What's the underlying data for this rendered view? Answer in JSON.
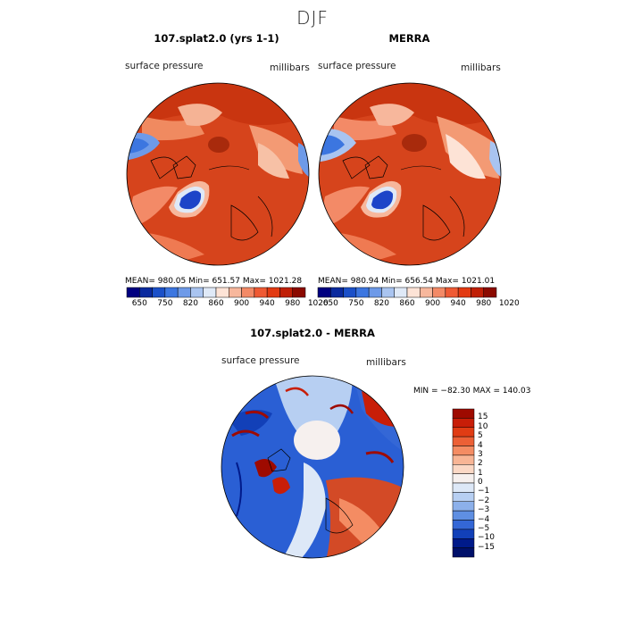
{
  "season": "DJF",
  "panels": [
    {
      "title": "107.splat2.0 (yrs 1-1)",
      "variable": "surface pressure",
      "units": "millibars",
      "stats": "MEAN= 980.05   Min= 651.57   Max= 1021.28"
    },
    {
      "title": "MERRA",
      "variable": "surface pressure",
      "units": "millibars",
      "stats": "MEAN= 980.94   Min= 656.54   Max= 1021.01"
    }
  ],
  "top_colorbar": {
    "colors": [
      "#000080",
      "#0a2a9e",
      "#1b50c8",
      "#3c76e0",
      "#6e9ae8",
      "#a9c4f0",
      "#dfe9f7",
      "#fde3d6",
      "#f7b79c",
      "#f38a67",
      "#ef5a34",
      "#e23a12",
      "#c01f06",
      "#8b0a00"
    ],
    "labels": [
      "650",
      "750",
      "820",
      "860",
      "900",
      "940",
      "980",
      "1020"
    ]
  },
  "diff_panel": {
    "title": "107.splat2.0 - MERRA",
    "variable": "surface pressure",
    "units": "millibars",
    "stats": "MIN = −82.30 MAX = 140.03"
  },
  "diff_colorbar": {
    "colors": [
      "#9e0a00",
      "#c81e08",
      "#e03c14",
      "#ec6036",
      "#f48c63",
      "#f8b595",
      "#fbd8c5",
      "#f6f0ee",
      "#dde8f7",
      "#b7cff2",
      "#8cb0ea",
      "#5f8fe2",
      "#3467d6",
      "#1240b8",
      "#001a8a"
    ],
    "labels": [
      "15",
      "10",
      "5",
      "4",
      "3",
      "2",
      "1",
      "0",
      "−1",
      "−2",
      "−3",
      "−4",
      "−5",
      "−10",
      "−15"
    ]
  },
  "colors": {
    "ocean_red": "#d6441c",
    "deep_red": "#b82f12",
    "blue_low": "#1d44c8",
    "diff_blue": "#2a5fd4",
    "diff_red": "#d34a26"
  }
}
